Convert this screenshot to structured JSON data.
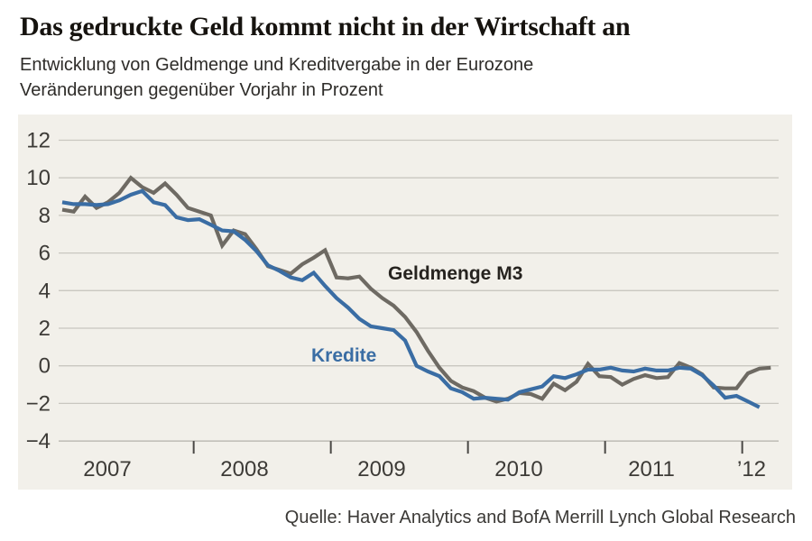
{
  "header": {
    "title": "Das gedruckte Geld kommt nicht in der Wirtschaft an",
    "subtitle_line1": "Entwicklung von Geldmenge und Kreditvergabe in der Eurozone",
    "subtitle_line2": "Veränderungen gegenüber Vorjahr in Prozent"
  },
  "source": "Quelle: Haver Analytics and BofA Merrill Lynch Global Research",
  "colors": {
    "page_background": "#ffffff",
    "panel_background": "#f2f0ea",
    "gridline": "#c9c7c0",
    "baseline": "#b3b1aa",
    "tick": "#4a4845",
    "axis_text": "#3d3b37",
    "m3_line": "#6e6a63",
    "m3_label": "#26231f",
    "kredite_line": "#3a6da4"
  },
  "chart_data": {
    "type": "line",
    "title": "Das gedruckte Geld kommt nicht in der Wirtschaft an",
    "subtitle": [
      "Entwicklung von Geldmenge und Kreditvergabe in der Eurozone",
      "Veränderungen gegenüber Vorjahr in Prozent"
    ],
    "source": "Quelle: Haver Analytics and BofA Merrill Lynch Global Research",
    "x_unit": "month",
    "x_start": "2007-01",
    "x_tick_labels": [
      "2007",
      "2008",
      "2009",
      "2010",
      "2011",
      "’12"
    ],
    "y_ticks": [
      12,
      10,
      8,
      6,
      4,
      2,
      0,
      -2,
      -4
    ],
    "y_tick_labels": [
      "12",
      "10",
      "8",
      "6",
      "4",
      "2",
      "0",
      "−2",
      "−4"
    ],
    "ylim": [
      -4,
      12
    ],
    "grid": true,
    "legend_position": "inline-labels",
    "series": [
      {
        "name": "Geldmenge M3",
        "color": "#6e6a63",
        "label_color": "#26231f",
        "values": [
          8.3,
          8.2,
          9.0,
          8.4,
          8.7,
          9.2,
          10.0,
          9.5,
          9.2,
          9.7,
          9.1,
          8.4,
          8.2,
          8.0,
          6.4,
          7.2,
          7.0,
          6.2,
          5.3,
          5.1,
          4.9,
          5.4,
          5.75,
          6.15,
          4.7,
          4.65,
          4.75,
          4.1,
          3.6,
          3.2,
          2.6,
          1.8,
          0.8,
          -0.1,
          -0.8,
          -1.15,
          -1.35,
          -1.7,
          -1.9,
          -1.75,
          -1.45,
          -1.5,
          -1.75,
          -0.95,
          -1.3,
          -0.85,
          0.1,
          -0.55,
          -0.6,
          -1.0,
          -0.7,
          -0.5,
          -0.65,
          -0.6,
          0.15,
          -0.1,
          -0.45,
          -1.15,
          -1.2,
          -1.2,
          -0.4,
          -0.15,
          -0.1
        ]
      },
      {
        "name": "Kredite",
        "color": "#3a6da4",
        "label_color": "#3a6da4",
        "values": [
          8.7,
          8.6,
          8.6,
          8.55,
          8.6,
          8.8,
          9.1,
          9.3,
          8.7,
          8.55,
          7.9,
          7.75,
          7.8,
          7.5,
          7.2,
          7.15,
          6.7,
          6.1,
          5.35,
          5.05,
          4.7,
          4.55,
          4.95,
          4.25,
          3.6,
          3.1,
          2.5,
          2.1,
          2.0,
          1.9,
          1.35,
          0.0,
          -0.3,
          -0.55,
          -1.2,
          -1.4,
          -1.75,
          -1.7,
          -1.75,
          -1.8,
          -1.4,
          -1.25,
          -1.1,
          -0.55,
          -0.65,
          -0.45,
          -0.2,
          -0.2,
          -0.1,
          -0.25,
          -0.3,
          -0.15,
          -0.25,
          -0.25,
          -0.1,
          -0.15,
          -0.5,
          -1.05,
          -1.7,
          -1.6,
          -1.9,
          -2.2
        ]
      }
    ]
  }
}
